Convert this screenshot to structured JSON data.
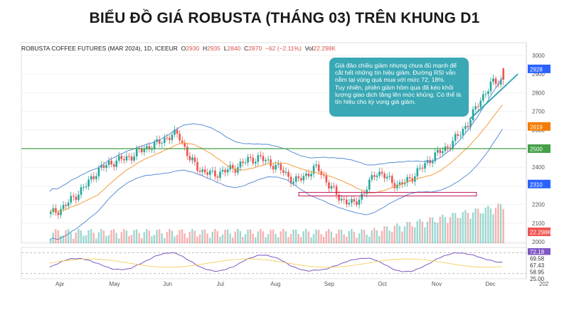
{
  "title": "BIỂU ĐỒ GIÁ ROBUSTA (THÁNG 03) TRÊN KHUNG D1",
  "header": {
    "symbol": "ROBUSTA COFFEE FUTURES (MAR 2024), 1D, ICEEUR",
    "open_label": "O",
    "open": "2930",
    "high_label": "H",
    "high": "2935",
    "low_label": "L",
    "low": "2840",
    "close_label": "C",
    "close": "2870",
    "change": "−62 (−2.11%)",
    "volume_label": "Vol",
    "volume": "22.298K"
  },
  "annotation": {
    "line1": "Giá đảo chiều giảm nhưng chưa đủ mạnh để cắt hết những tín hiệu giảm. Đường RSI vẫn nằm tại vùng quá mua với mức 72, 18%.",
    "line2": "Tuy nhiên, phiên giảm hôm qua đã kéo khối lượng giao dịch tăng lên mức khủng. Có thể là tín hiệu cho kỳ vọng giá giảm."
  },
  "price_axis": {
    "ticks": [
      "3000",
      "2900",
      "2800",
      "2700",
      "2600",
      "2500",
      "2400",
      "2300",
      "2200",
      "2100",
      "2000"
    ],
    "badges": [
      {
        "label": "2928",
        "color": "#2962ff"
      },
      {
        "label": "2619",
        "color": "#f57c00"
      },
      {
        "label": "2500",
        "color": "#43a047"
      },
      {
        "label": "2310",
        "color": "#2962ff"
      },
      {
        "label": "22.298K",
        "color": "#ef5350"
      }
    ]
  },
  "rsi_axis": {
    "ticks": [
      "72.18",
      "69.58",
      "67.43",
      "58.95",
      "25.00"
    ]
  },
  "time_axis": {
    "labels": [
      "Apr",
      "May",
      "Jun",
      "Jul",
      "Aug",
      "Sep",
      "Oct",
      "Nov",
      "Dec",
      "202"
    ]
  },
  "colors": {
    "up": "#26a69a",
    "down": "#ef5350",
    "bollinger": "#5b8fd6",
    "ma": "#f39c3c",
    "support": "#43a047",
    "rsi": "#7e57c2",
    "annotation_bg": "#3aa8b5",
    "support_box": "#c2185b"
  },
  "chart_data": {
    "type": "candlestick",
    "symbol": "ROBUSTA COFFEE FUTURES (MAR 2024)",
    "timeframe": "1D",
    "x_labels": [
      "Apr",
      "May",
      "Jun",
      "Jul",
      "Aug",
      "Sep",
      "Oct",
      "Nov",
      "Dec"
    ],
    "price_range": [
      2000,
      3000
    ],
    "close_approx": [
      2150,
      2180,
      2240,
      2300,
      2380,
      2420,
      2440,
      2460,
      2500,
      2520,
      2560,
      2580,
      2440,
      2380,
      2360,
      2380,
      2400,
      2440,
      2450,
      2420,
      2380,
      2320,
      2360,
      2400,
      2300,
      2230,
      2200,
      2260,
      2380,
      2340,
      2300,
      2340,
      2400,
      2460,
      2500,
      2560,
      2640,
      2760,
      2850,
      2870
    ],
    "support_level": 2500,
    "last": {
      "open": 2930,
      "high": 2935,
      "low": 2840,
      "close": 2870,
      "change": -62,
      "change_pct": -2.11,
      "volume": "22.298K"
    },
    "rsi_last": 72.18,
    "rsi_levels": [
      72.18,
      69.58,
      67.43,
      58.95,
      25.0
    ]
  }
}
